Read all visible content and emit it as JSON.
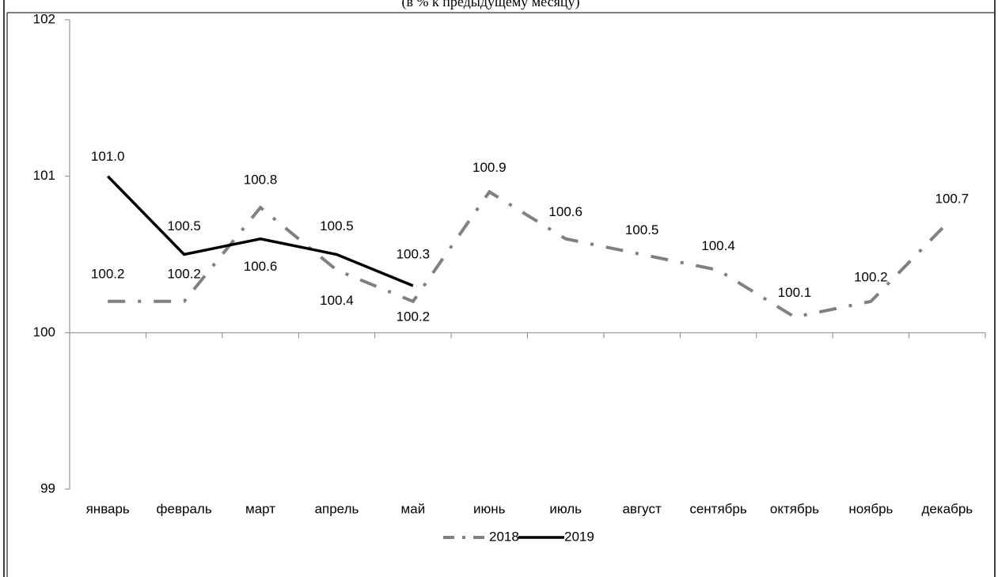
{
  "chart_data": {
    "type": "line",
    "subtitle": "(в % к предыдущему месяцу)",
    "categories": [
      "январь",
      "февраль",
      "март",
      "апрель",
      "май",
      "июнь",
      "июль",
      "август",
      "сентябрь",
      "октябрь",
      "ноябрь",
      "декабрь"
    ],
    "series": [
      {
        "name": "2018",
        "color": "#808080",
        "dash": "dash-dot",
        "values": [
          100.2,
          100.2,
          100.8,
          100.4,
          100.2,
          100.9,
          100.6,
          100.5,
          100.4,
          100.1,
          100.2,
          100.7
        ],
        "value_labels": [
          "100.2",
          "100.2",
          "100.8",
          "100.4",
          "100.2",
          "100.9",
          "100.6",
          "100.5",
          "100.4",
          "100.1",
          "100.2",
          "100.7"
        ]
      },
      {
        "name": "2019",
        "color": "#000000",
        "dash": "solid",
        "values": [
          101.0,
          100.5,
          100.6,
          100.5,
          100.3,
          null,
          null,
          null,
          null,
          null,
          null,
          null
        ],
        "value_labels": [
          "101.0",
          "100.5",
          "100.6",
          "100.5",
          "100.3",
          null,
          null,
          null,
          null,
          null,
          null,
          null
        ]
      }
    ],
    "ylim": [
      99,
      102
    ],
    "yticks": [
      99,
      100,
      101,
      102
    ],
    "grid": false,
    "legend": "bottom"
  }
}
